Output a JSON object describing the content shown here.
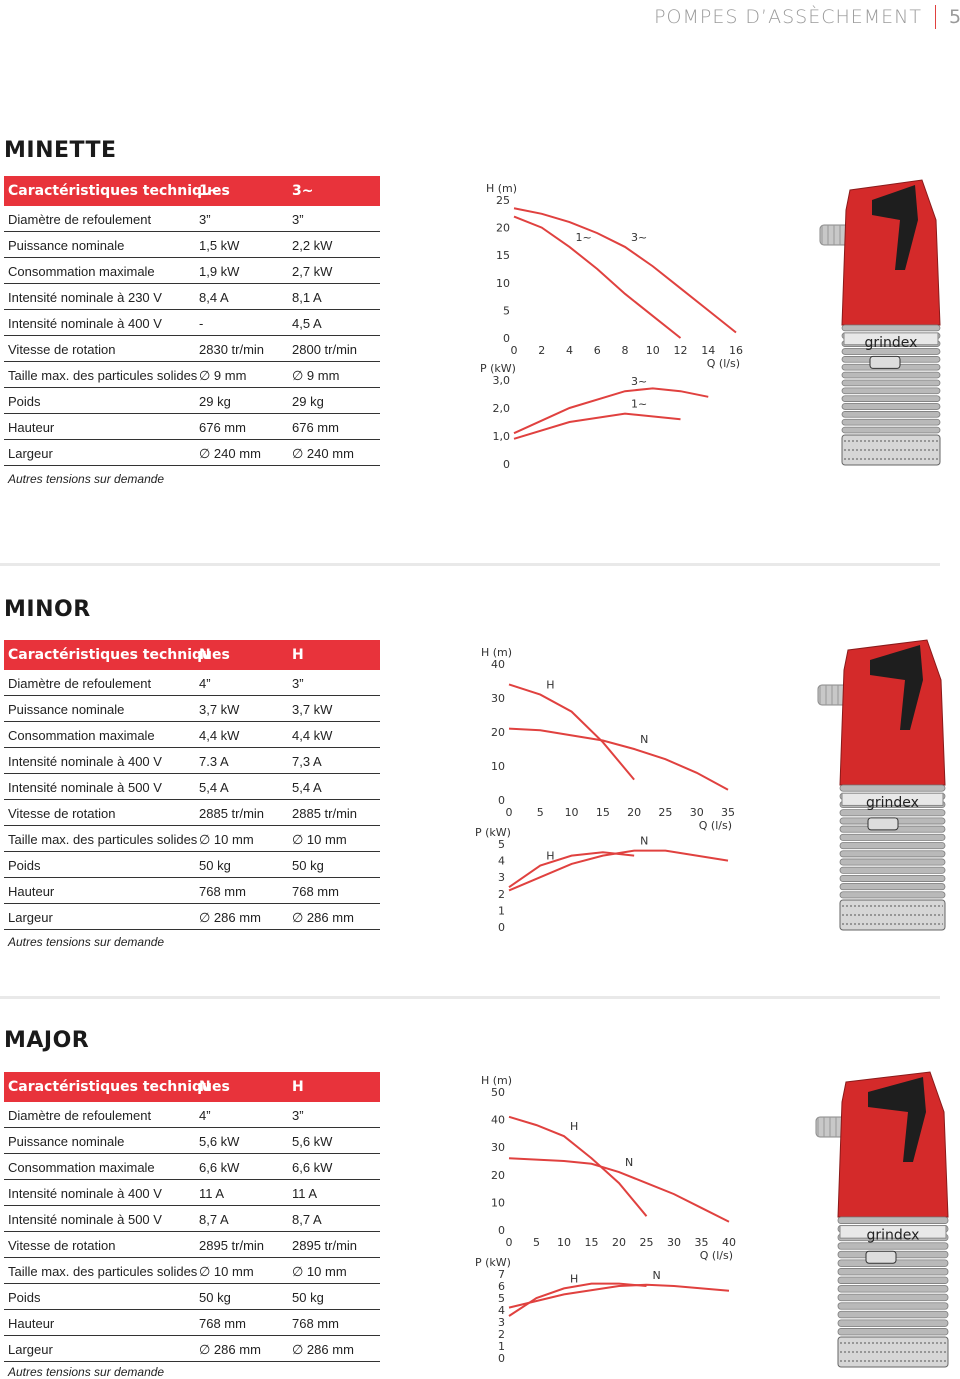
{
  "header": {
    "title": "POMPES D’ASSÈCHEMENT",
    "page_number": "5"
  },
  "colors": {
    "accent": "#e8333b",
    "curve": "#e0413f",
    "pump_red": "#d42a2a",
    "pump_silver": "#b9b9b9"
  },
  "sections": [
    {
      "title": "MINETTE",
      "spec": {
        "head": [
          "Caractéristiques techniques",
          "1~",
          "3~"
        ],
        "rows": [
          [
            "Diamètre de refoulement",
            "3”",
            "3”"
          ],
          [
            "Puissance nominale",
            "1,5 kW",
            "2,2 kW"
          ],
          [
            "Consommation maximale",
            "1,9 kW",
            "2,7 kW"
          ],
          [
            "Intensité nominale à 230 V",
            "8,4 A",
            "8,1 A"
          ],
          [
            "Intensité nominale à 400 V",
            "-",
            "4,5 A"
          ],
          [
            "Vitesse de rotation",
            "2830 tr/min",
            "2800 tr/min"
          ],
          [
            "Taille max. des particules solides",
            "∅ 9 mm",
            "∅ 9 mm"
          ],
          [
            "Poids",
            "29 kg",
            "29 kg"
          ],
          [
            "Hauteur",
            "676 mm",
            "676 mm"
          ],
          [
            "Largeur",
            "∅ 240 mm",
            "∅ 240 mm"
          ]
        ],
        "note": "Autres tensions sur demande"
      },
      "pump_label": "grindex",
      "chart": {
        "h_axis_label": "H (m)",
        "p_axis_label": "P (kW)",
        "q_axis_label": "Q (l/s)",
        "h_ticks": [
          "25",
          "20",
          "15",
          "10",
          "5",
          "0"
        ],
        "q_ticks": [
          "0",
          "2",
          "4",
          "6",
          "8",
          "10",
          "12",
          "14",
          "16"
        ],
        "p_ticks": [
          "3,0",
          "2,0",
          "1,0",
          "0"
        ]
      }
    },
    {
      "title": "MINOR",
      "spec": {
        "head": [
          "Caractéristiques techniques",
          "N",
          "H"
        ],
        "rows": [
          [
            "Diamètre de refoulement",
            "4”",
            "3”"
          ],
          [
            "Puissance nominale",
            "3,7 kW",
            "3,7 kW"
          ],
          [
            "Consommation maximale",
            "4,4 kW",
            "4,4 kW"
          ],
          [
            "Intensité nominale à 400 V",
            "7.3 A",
            "7,3 A"
          ],
          [
            "Intensité nominale à 500 V",
            "5,4 A",
            "5,4 A"
          ],
          [
            "Vitesse de rotation",
            "2885 tr/min",
            "2885 tr/min"
          ],
          [
            "Taille max. des particules solides",
            "∅ 10 mm",
            "∅ 10 mm"
          ],
          [
            "Poids",
            "50 kg",
            "50 kg"
          ],
          [
            "Hauteur",
            "768 mm",
            "768 mm"
          ],
          [
            "Largeur",
            "∅ 286 mm",
            "∅ 286 mm"
          ]
        ],
        "note": "Autres tensions sur demande"
      },
      "pump_label": "grindex",
      "chart": {
        "h_axis_label": "H (m)",
        "p_axis_label": "P (kW)",
        "q_axis_label": "Q (l/s)",
        "h_ticks": [
          "40",
          "30",
          "20",
          "10",
          "0"
        ],
        "q_ticks": [
          "0",
          "5",
          "10",
          "15",
          "20",
          "25",
          "30",
          "35"
        ],
        "p_ticks": [
          "5",
          "4",
          "3",
          "2",
          "1",
          "0"
        ]
      }
    },
    {
      "title": "MAJOR",
      "spec": {
        "head": [
          "Caractéristiques techniques",
          "N",
          "H"
        ],
        "rows": [
          [
            "Diamètre de refoulement",
            "4”",
            "3”"
          ],
          [
            "Puissance nominale",
            "5,6 kW",
            "5,6 kW"
          ],
          [
            "Consommation maximale",
            "6,6 kW",
            "6,6 kW"
          ],
          [
            "Intensité nominale à 400 V",
            "11 A",
            "11 A"
          ],
          [
            "Intensité nominale à 500 V",
            "8,7 A",
            "8,7 A"
          ],
          [
            "Vitesse de rotation",
            "2895 tr/min",
            "2895 tr/min"
          ],
          [
            "Taille max. des particules solides",
            "∅ 10 mm",
            "∅ 10 mm"
          ],
          [
            "Poids",
            "50 kg",
            "50 kg"
          ],
          [
            "Hauteur",
            "768 mm",
            "768 mm"
          ],
          [
            "Largeur",
            "∅ 286 mm",
            "∅ 286 mm"
          ]
        ],
        "note": "Autres tensions sur demande"
      },
      "pump_label": "grindex",
      "chart": {
        "h_axis_label": "H (m)",
        "p_axis_label": "P (kW)",
        "q_axis_label": "Q (l/s)",
        "h_ticks": [
          "50",
          "40",
          "30",
          "20",
          "10",
          "0"
        ],
        "q_ticks": [
          "0",
          "5",
          "10",
          "15",
          "20",
          "25",
          "30",
          "35",
          "40"
        ],
        "p_ticks": [
          "7",
          "6",
          "5",
          "4",
          "3",
          "2",
          "1",
          "0"
        ]
      }
    }
  ],
  "chart_data": [
    {
      "type": "line",
      "xlabel": "Q (l/s)",
      "ylabel": "H (m)",
      "xlim": [
        0,
        16
      ],
      "ylim": [
        0,
        25
      ],
      "series": [
        {
          "name": "1~",
          "x": [
            0,
            2,
            4,
            6,
            8,
            10,
            12
          ],
          "y": [
            22,
            20,
            16.5,
            12.5,
            8,
            4,
            0
          ]
        },
        {
          "name": "3~",
          "x": [
            0,
            2,
            4,
            6,
            8,
            10,
            12,
            14,
            16
          ],
          "y": [
            23.5,
            22.5,
            21,
            19,
            16.5,
            13,
            9,
            5,
            1
          ]
        }
      ]
    },
    {
      "type": "line",
      "xlabel": "Q (l/s)",
      "ylabel": "P (kW)",
      "xlim": [
        0,
        16
      ],
      "ylim": [
        0,
        3
      ],
      "series": [
        {
          "name": "3~",
          "x": [
            0,
            4,
            8,
            10,
            12,
            14
          ],
          "y": [
            1.1,
            2.0,
            2.6,
            2.7,
            2.6,
            2.4
          ]
        },
        {
          "name": "1~",
          "x": [
            0,
            4,
            8,
            12
          ],
          "y": [
            0.9,
            1.5,
            1.8,
            1.6
          ]
        }
      ]
    },
    {
      "type": "line",
      "xlabel": "Q (l/s)",
      "ylabel": "H (m)",
      "xlim": [
        0,
        35
      ],
      "ylim": [
        0,
        40
      ],
      "series": [
        {
          "name": "H",
          "x": [
            0,
            5,
            10,
            15,
            20
          ],
          "y": [
            34,
            31,
            26,
            17,
            6
          ]
        },
        {
          "name": "N",
          "x": [
            0,
            5,
            10,
            15,
            20,
            25,
            30,
            35
          ],
          "y": [
            21,
            20.5,
            19,
            17.5,
            15,
            12,
            8,
            3
          ]
        }
      ]
    },
    {
      "type": "line",
      "xlabel": "Q (l/s)",
      "ylabel": "P (kW)",
      "xlim": [
        0,
        35
      ],
      "ylim": [
        0,
        5
      ],
      "series": [
        {
          "name": "H",
          "x": [
            0,
            5,
            10,
            15,
            20
          ],
          "y": [
            2.4,
            3.7,
            4.3,
            4.5,
            4.3
          ]
        },
        {
          "name": "N",
          "x": [
            0,
            5,
            10,
            15,
            20,
            25,
            30,
            35
          ],
          "y": [
            2.2,
            3.0,
            3.8,
            4.3,
            4.6,
            4.6,
            4.3,
            4.0
          ]
        }
      ]
    },
    {
      "type": "line",
      "xlabel": "Q (l/s)",
      "ylabel": "H (m)",
      "xlim": [
        0,
        40
      ],
      "ylim": [
        0,
        50
      ],
      "series": [
        {
          "name": "H",
          "x": [
            0,
            5,
            10,
            15,
            20,
            25
          ],
          "y": [
            41,
            38,
            34,
            26,
            17,
            5
          ]
        },
        {
          "name": "N",
          "x": [
            0,
            5,
            10,
            15,
            20,
            25,
            30,
            35,
            40
          ],
          "y": [
            26,
            25.5,
            25,
            24,
            21,
            17,
            13,
            8,
            3
          ]
        }
      ]
    },
    {
      "type": "line",
      "xlabel": "Q (l/s)",
      "ylabel": "P (kW)",
      "xlim": [
        0,
        40
      ],
      "ylim": [
        0,
        7
      ],
      "series": [
        {
          "name": "H",
          "x": [
            0,
            5,
            10,
            15,
            20,
            25
          ],
          "y": [
            3.5,
            5.0,
            5.8,
            6.2,
            6.2,
            6.0
          ]
        },
        {
          "name": "N",
          "x": [
            0,
            10,
            20,
            25,
            30,
            35,
            40
          ],
          "y": [
            4.2,
            5.3,
            6.0,
            6.1,
            6.0,
            5.8,
            5.6
          ]
        }
      ]
    }
  ]
}
